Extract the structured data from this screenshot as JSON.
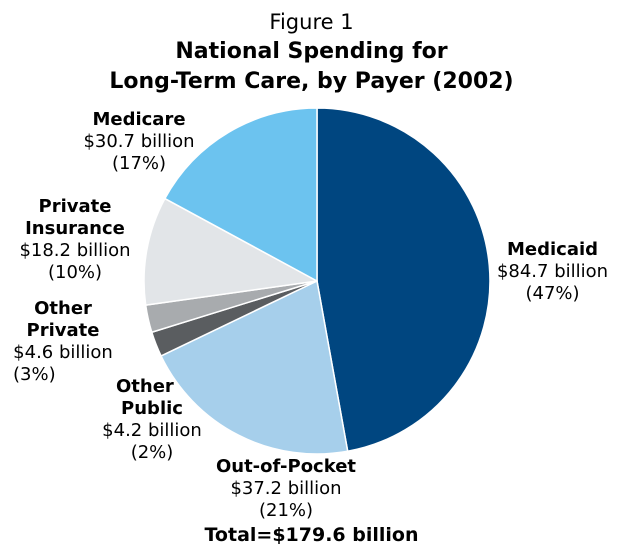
{
  "figure_label": "Figure 1",
  "chart_data": {
    "type": "pie",
    "title": "National Spending for Long-Term Care, by Payer (2002)",
    "title_lines": [
      "National Spending for",
      "Long-Term Care, by Payer (2002)"
    ],
    "unit": "billion",
    "total_label": "Total=$179.6 billion",
    "total": 179.6,
    "slices": [
      {
        "name": "Medicaid",
        "name_lines": [
          "Medicaid"
        ],
        "value": 84.7,
        "value_label": "$84.7 billion",
        "percent_label": "(47%)",
        "color": "#004680"
      },
      {
        "name": "Out-of-Pocket",
        "name_lines": [
          "Out-of-Pocket"
        ],
        "value": 37.2,
        "value_label": "$37.2 billion",
        "percent_label": "(21%)",
        "color": "#a6cfeb"
      },
      {
        "name": "Other Public",
        "name_lines": [
          "Other",
          "Public"
        ],
        "value": 4.2,
        "value_label": "$4.2 billion",
        "percent_label": "(2%)",
        "color": "#5a5d60"
      },
      {
        "name": "Other Private",
        "name_lines": [
          "Other",
          "Private"
        ],
        "value": 4.6,
        "value_label": "$4.6 billion",
        "percent_label": "(3%)",
        "color": "#a8abae"
      },
      {
        "name": "Private Insurance",
        "name_lines": [
          "Private",
          "Insurance"
        ],
        "value": 18.2,
        "value_label": "$18.2 billion",
        "percent_label": "(10%)",
        "color": "#e2e5e8"
      },
      {
        "name": "Medicare",
        "name_lines": [
          "Medicare"
        ],
        "value": 30.7,
        "value_label": "$30.7 billion",
        "percent_label": "(17%)",
        "color": "#6cc3ef"
      }
    ],
    "start_angle": "12 o'clock",
    "direction": "clockwise",
    "legend": "none (direct labels)"
  }
}
